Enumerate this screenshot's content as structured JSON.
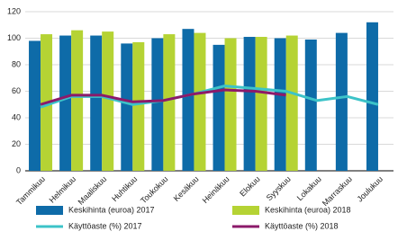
{
  "chart_data": {
    "type": "bar",
    "categories": [
      "Tammikuu",
      "Helmikuu",
      "Maaliskuu",
      "Huhtikuu",
      "Toukokuu",
      "Kesäkuu",
      "Heinäkuu",
      "Elokuu",
      "Syyskuu",
      "Lokakuu",
      "Marraskuu",
      "Joulukuu"
    ],
    "series": [
      {
        "name": "Keskihinta (euroa) 2017",
        "color": "#0e6ba8",
        "kind": "bar",
        "values": [
          98,
          102,
          102,
          96,
          100,
          107,
          95,
          101,
          100,
          99,
          104,
          112
        ]
      },
      {
        "name": "Keskihinta (euroa) 2018",
        "color": "#b5d334",
        "kind": "bar",
        "values": [
          103,
          106,
          105,
          97,
          103,
          104,
          100,
          101,
          102,
          null,
          null,
          null
        ]
      },
      {
        "name": "Käyttöaste (%) 2017",
        "color": "#3cc3c8",
        "kind": "line",
        "values": [
          48,
          56,
          56,
          50,
          53,
          58,
          64,
          62,
          60,
          53,
          56,
          50
        ]
      },
      {
        "name": "Käyttöaste (%) 2018",
        "color": "#8c1a6a",
        "kind": "line",
        "values": [
          50,
          57,
          57,
          52,
          53,
          58,
          61,
          60,
          57,
          null,
          null,
          null
        ]
      }
    ],
    "ylim": [
      0,
      120
    ],
    "yticks": [
      0,
      20,
      40,
      60,
      80,
      100,
      120
    ],
    "grid": true
  }
}
